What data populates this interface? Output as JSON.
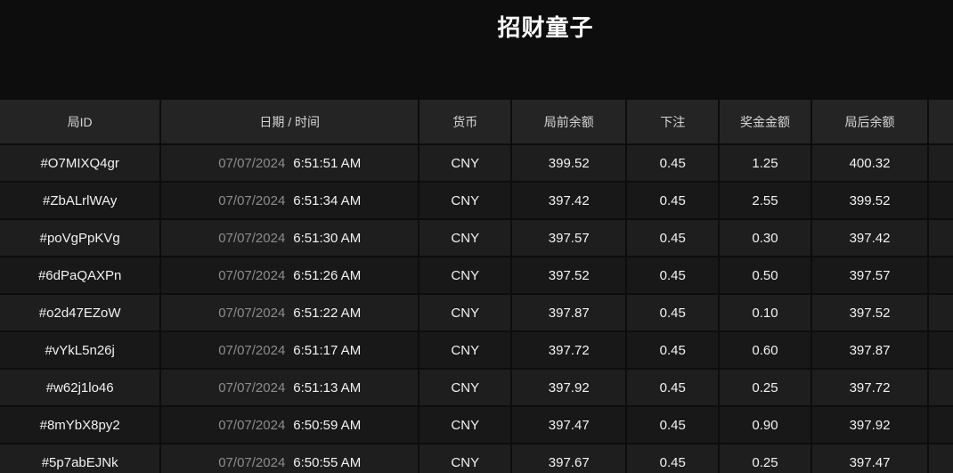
{
  "page": {
    "title": "招财童子",
    "colors": {
      "background": "#0d0d0d",
      "header_row_bg": "#242424",
      "row_odd_bg": "#1e1e1e",
      "row_even_bg": "#181818",
      "title_text": "#ffffff",
      "header_text": "#d6d6d6",
      "cell_text": "#f2f2f2",
      "date_text": "#8c8c8c"
    }
  },
  "table": {
    "columns": [
      {
        "key": "round_id",
        "label": "局ID"
      },
      {
        "key": "datetime",
        "label": "日期 / 时间"
      },
      {
        "key": "currency",
        "label": "货币"
      },
      {
        "key": "balance_before",
        "label": "局前余额"
      },
      {
        "key": "bet",
        "label": "下注"
      },
      {
        "key": "prize",
        "label": "奖金金额"
      },
      {
        "key": "balance_after",
        "label": "局后余额"
      },
      {
        "key": "extra",
        "label": ""
      }
    ],
    "rows": [
      {
        "round_id": "#O7MIXQ4gr",
        "date": "07/07/2024",
        "time": "6:51:51 AM",
        "currency": "CNY",
        "balance_before": "399.52",
        "bet": "0.45",
        "prize": "1.25",
        "balance_after": "400.32"
      },
      {
        "round_id": "#ZbALrlWAy",
        "date": "07/07/2024",
        "time": "6:51:34 AM",
        "currency": "CNY",
        "balance_before": "397.42",
        "bet": "0.45",
        "prize": "2.55",
        "balance_after": "399.52"
      },
      {
        "round_id": "#poVgPpKVg",
        "date": "07/07/2024",
        "time": "6:51:30 AM",
        "currency": "CNY",
        "balance_before": "397.57",
        "bet": "0.45",
        "prize": "0.30",
        "balance_after": "397.42"
      },
      {
        "round_id": "#6dPaQAXPn",
        "date": "07/07/2024",
        "time": "6:51:26 AM",
        "currency": "CNY",
        "balance_before": "397.52",
        "bet": "0.45",
        "prize": "0.50",
        "balance_after": "397.57"
      },
      {
        "round_id": "#o2d47EZoW",
        "date": "07/07/2024",
        "time": "6:51:22 AM",
        "currency": "CNY",
        "balance_before": "397.87",
        "bet": "0.45",
        "prize": "0.10",
        "balance_after": "397.52"
      },
      {
        "round_id": "#vYkL5n26j",
        "date": "07/07/2024",
        "time": "6:51:17 AM",
        "currency": "CNY",
        "balance_before": "397.72",
        "bet": "0.45",
        "prize": "0.60",
        "balance_after": "397.87"
      },
      {
        "round_id": "#w62j1lo46",
        "date": "07/07/2024",
        "time": "6:51:13 AM",
        "currency": "CNY",
        "balance_before": "397.92",
        "bet": "0.45",
        "prize": "0.25",
        "balance_after": "397.72"
      },
      {
        "round_id": "#8mYbX8py2",
        "date": "07/07/2024",
        "time": "6:50:59 AM",
        "currency": "CNY",
        "balance_before": "397.47",
        "bet": "0.45",
        "prize": "0.90",
        "balance_after": "397.92"
      },
      {
        "round_id": "#5p7abEJNk",
        "date": "07/07/2024",
        "time": "6:50:55 AM",
        "currency": "CNY",
        "balance_before": "397.67",
        "bet": "0.45",
        "prize": "0.25",
        "balance_after": "397.47"
      }
    ]
  }
}
